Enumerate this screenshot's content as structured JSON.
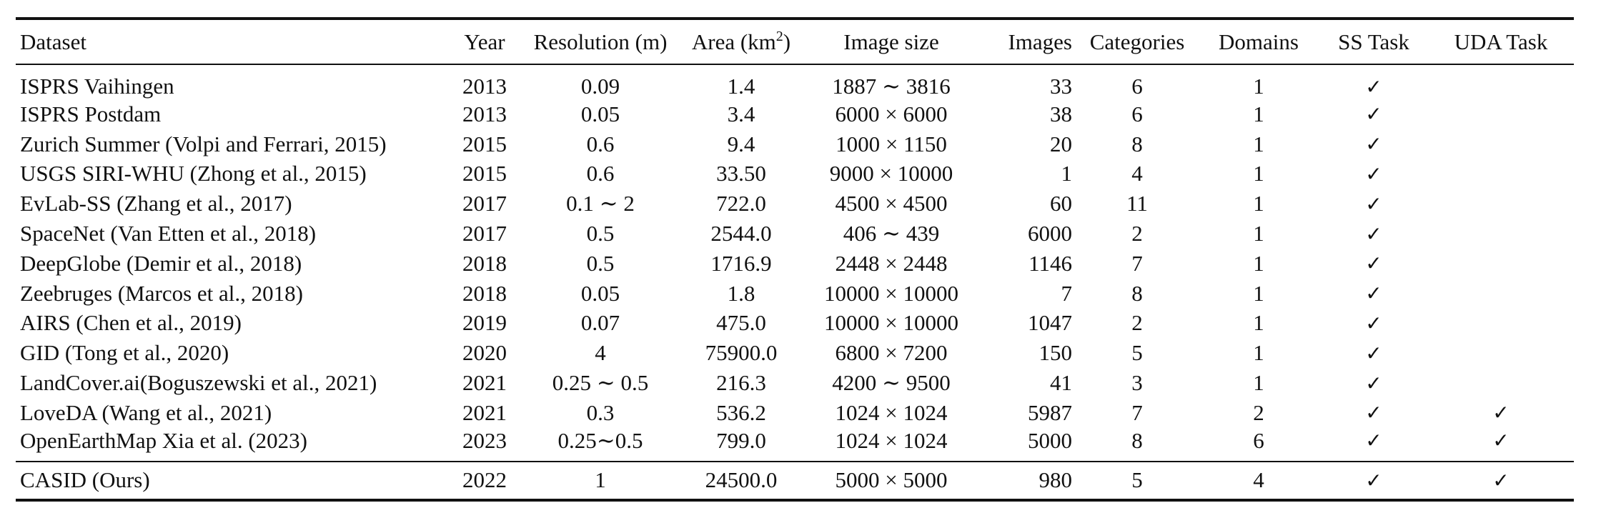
{
  "table": {
    "headers": {
      "dataset": "Dataset",
      "year": "Year",
      "resolution": "Resolution (m)",
      "area": "Area (km",
      "area_sup": "2",
      "area_close": ")",
      "image_size": "Image size",
      "images": "Images",
      "categories": "Categories",
      "domains": "Domains",
      "ss_task": "SS Task",
      "uda_task": "UDA Task"
    },
    "rows": [
      {
        "dataset": "ISPRS Vaihingen",
        "year": "2013",
        "resolution": "0.09",
        "area": "1.4",
        "image_size": "1887 ∼ 3816",
        "images": "33",
        "categories": "6",
        "domains": "1",
        "ss": "✓",
        "uda": ""
      },
      {
        "dataset": "ISPRS Postdam",
        "year": "2013",
        "resolution": "0.05",
        "area": "3.4",
        "image_size": "6000 × 6000",
        "images": "38",
        "categories": "6",
        "domains": "1",
        "ss": "✓",
        "uda": ""
      },
      {
        "dataset": "Zurich Summer (Volpi and Ferrari, 2015)",
        "year": "2015",
        "resolution": "0.6",
        "area": "9.4",
        "image_size": "1000 × 1150",
        "images": "20",
        "categories": "8",
        "domains": "1",
        "ss": "✓",
        "uda": ""
      },
      {
        "dataset": "USGS SIRI-WHU (Zhong et al., 2015)",
        "year": "2015",
        "resolution": "0.6",
        "area": "33.50",
        "image_size": "9000 × 10000",
        "images": "1",
        "categories": "4",
        "domains": "1",
        "ss": "✓",
        "uda": ""
      },
      {
        "dataset": "EvLab-SS (Zhang et al., 2017)",
        "year": "2017",
        "resolution": "0.1 ∼ 2",
        "area": "722.0",
        "image_size": "4500 × 4500",
        "images": "60",
        "categories": "11",
        "domains": "1",
        "ss": "✓",
        "uda": ""
      },
      {
        "dataset": "SpaceNet (Van Etten et al., 2018)",
        "year": "2017",
        "resolution": "0.5",
        "area": "2544.0",
        "image_size": "406 ∼ 439",
        "images": "6000",
        "categories": "2",
        "domains": "1",
        "ss": "✓",
        "uda": ""
      },
      {
        "dataset": "DeepGlobe (Demir et al., 2018)",
        "year": "2018",
        "resolution": "0.5",
        "area": "1716.9",
        "image_size": "2448 × 2448",
        "images": "1146",
        "categories": "7",
        "domains": "1",
        "ss": "✓",
        "uda": ""
      },
      {
        "dataset": "Zeebruges (Marcos et al., 2018)",
        "year": "2018",
        "resolution": "0.05",
        "area": "1.8",
        "image_size": "10000 × 10000",
        "images": "7",
        "categories": "8",
        "domains": "1",
        "ss": "✓",
        "uda": ""
      },
      {
        "dataset": "AIRS (Chen et al., 2019)",
        "year": "2019",
        "resolution": "0.07",
        "area": "475.0",
        "image_size": "10000 × 10000",
        "images": "1047",
        "categories": "2",
        "domains": "1",
        "ss": "✓",
        "uda": ""
      },
      {
        "dataset": "GID (Tong et al., 2020)",
        "year": "2020",
        "resolution": "4",
        "area": "75900.0",
        "image_size": "6800 × 7200",
        "images": "150",
        "categories": "5",
        "domains": "1",
        "ss": "✓",
        "uda": ""
      },
      {
        "dataset": "LandCover.ai(Boguszewski et al., 2021)",
        "year": "2021",
        "resolution": "0.25 ∼ 0.5",
        "area": "216.3",
        "image_size": "4200 ∼ 9500",
        "images": "41",
        "categories": "3",
        "domains": "1",
        "ss": "✓",
        "uda": ""
      },
      {
        "dataset": "LoveDA (Wang et al., 2021)",
        "year": "2021",
        "resolution": "0.3",
        "area": "536.2",
        "image_size": "1024 × 1024",
        "images": "5987",
        "categories": "7",
        "domains": "2",
        "ss": "✓",
        "uda": "✓"
      },
      {
        "dataset": "OpenEarthMap Xia et al. (2023)",
        "year": "2023",
        "resolution": "0.25∼0.5",
        "area": "799.0",
        "image_size": "1024 × 1024",
        "images": "5000",
        "categories": "8",
        "domains": "6",
        "ss": "✓",
        "uda": "✓"
      }
    ],
    "footer": {
      "dataset": "CASID (Ours)",
      "year": "2022",
      "resolution": "1",
      "area": "24500.0",
      "image_size": "5000 × 5000",
      "images": "980",
      "categories": "5",
      "domains": "4",
      "ss": "✓",
      "uda": "✓"
    }
  }
}
